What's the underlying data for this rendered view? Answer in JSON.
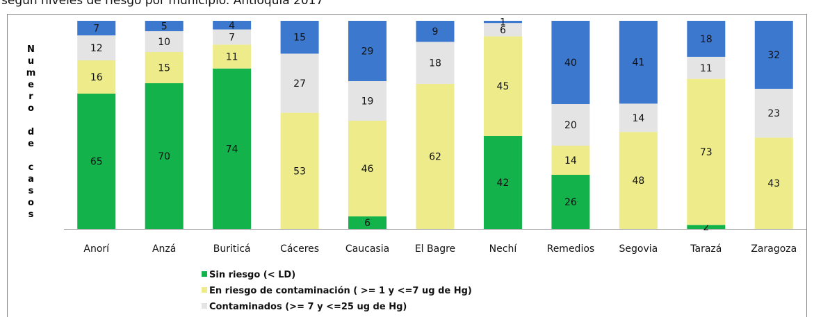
{
  "chart_data": {
    "type": "bar",
    "stacking": "percent",
    "title": "según niveles de riesgo por municipio. Antioquia 2017",
    "y_label": "Numero de casos",
    "categories": [
      "Anorí",
      "Anzá",
      "Buriticá",
      "Cáceres",
      "Caucasia",
      "El Bagre",
      "Nechí",
      "Remedios",
      "Segovia",
      "Tarazá",
      "Zaragoza"
    ],
    "series": [
      {
        "name": "Sin riesgo (< LD)",
        "color": "#13b24a",
        "values": [
          65,
          70,
          74,
          null,
          6,
          null,
          42,
          26,
          null,
          2,
          null
        ]
      },
      {
        "name": "En riesgo de contaminación ( >= 1 y <=7 ug de Hg)",
        "color": "#eeeb8a",
        "values": [
          16,
          15,
          11,
          53,
          46,
          62,
          45,
          14,
          48,
          73,
          43
        ]
      },
      {
        "name": "Contaminados (>= 7 y <=25 ug de Hg)",
        "color": "#e4e4e4",
        "values": [
          12,
          10,
          7,
          27,
          19,
          18,
          6,
          20,
          14,
          11,
          23
        ]
      },
      {
        "color": "#3d78cf",
        "values": [
          7,
          5,
          4,
          15,
          29,
          9,
          1,
          40,
          41,
          18,
          32
        ]
      }
    ]
  }
}
